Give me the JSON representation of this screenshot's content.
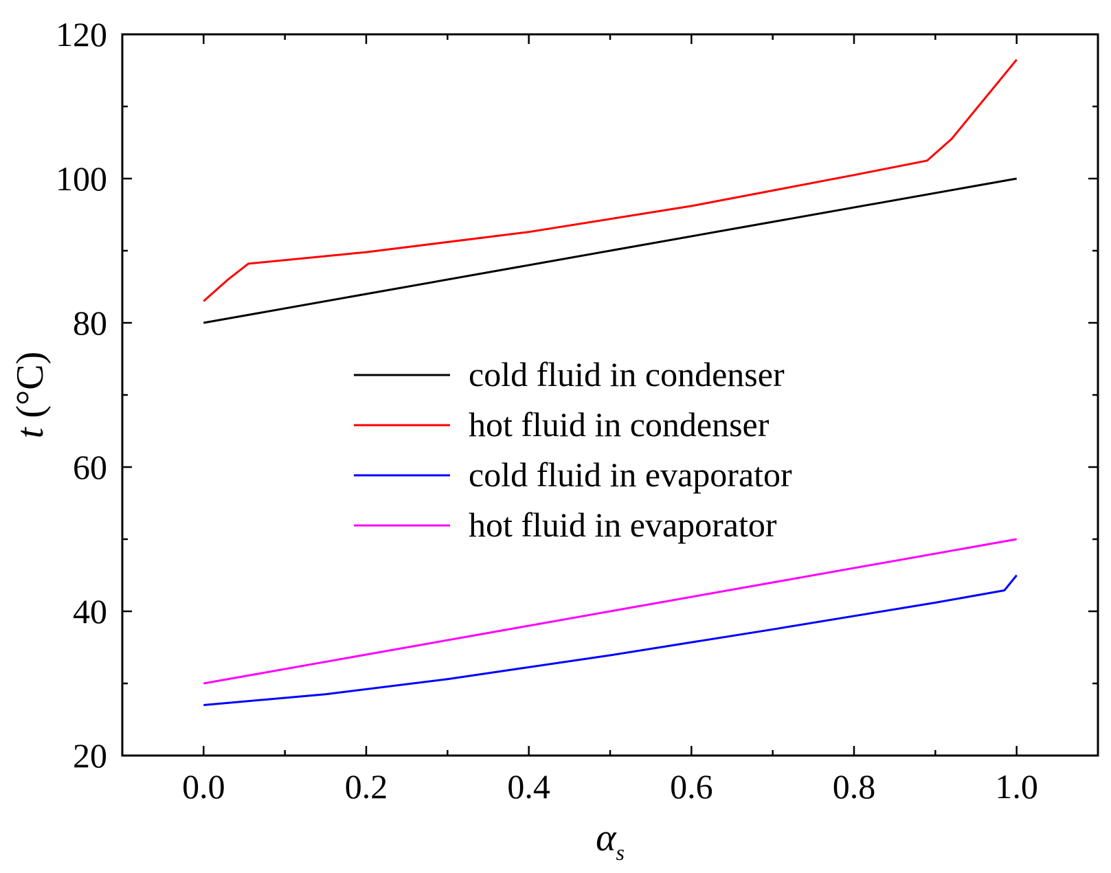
{
  "chart_data": {
    "type": "line",
    "title": "",
    "xlabel": "α",
    "xlabel_subscript": "s",
    "ylabel": "t",
    "ylabel_unit": " (°C)",
    "xlim": [
      -0.1,
      1.1
    ],
    "ylim": [
      20,
      120
    ],
    "xticks": [
      0.0,
      0.2,
      0.4,
      0.6,
      0.8,
      1.0
    ],
    "xtick_labels": [
      "0.0",
      "0.2",
      "0.4",
      "0.6",
      "0.8",
      "1.0"
    ],
    "yticks": [
      20,
      40,
      60,
      80,
      100,
      120
    ],
    "ytick_labels": [
      "20",
      "40",
      "60",
      "80",
      "100",
      "120"
    ],
    "grid": false,
    "legend_position": "center",
    "series": [
      {
        "name": "cold fluid in condenser",
        "color": "#000000",
        "x": [
          0.0,
          1.0
        ],
        "y": [
          80.0,
          100.0
        ]
      },
      {
        "name": "hot fluid in condenser",
        "color": "#ff0000",
        "x": [
          0.0,
          0.03,
          0.055,
          0.2,
          0.4,
          0.6,
          0.8,
          0.89,
          0.92,
          1.0
        ],
        "y": [
          83.0,
          86.0,
          88.2,
          89.8,
          92.6,
          96.2,
          100.5,
          102.5,
          105.5,
          116.5
        ]
      },
      {
        "name": "cold fluid in evaporator",
        "color": "#0000ff",
        "x": [
          0.0,
          0.15,
          0.3,
          0.5,
          0.7,
          0.9,
          0.985,
          1.0
        ],
        "y": [
          27.0,
          28.5,
          30.6,
          33.9,
          37.5,
          41.2,
          42.9,
          45.0
        ]
      },
      {
        "name": "hot fluid in evaporator",
        "color": "#ff00ff",
        "x": [
          0.0,
          1.0
        ],
        "y": [
          30.0,
          50.0
        ]
      }
    ]
  }
}
